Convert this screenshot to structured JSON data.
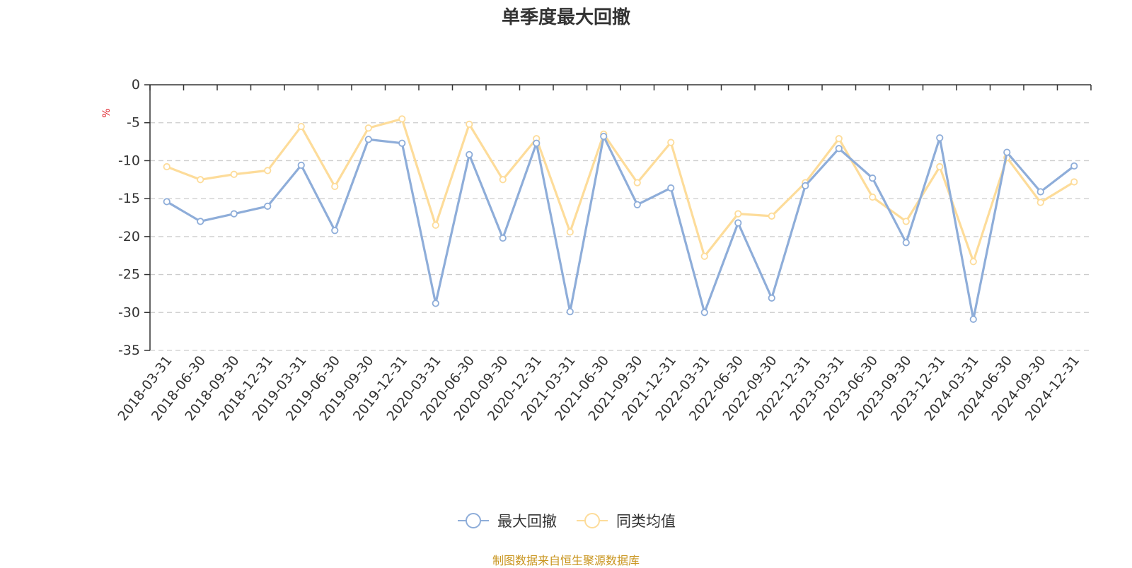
{
  "colors": {
    "series1": "#8eadd9",
    "series2": "#fddc9a",
    "unit": "#e0222a",
    "source": "#c9951e",
    "axis": "#333333",
    "grid": "#cccccc"
  },
  "source_note": "制图数据来自恒生聚源数据库",
  "legend": [
    {
      "name": "最大回撤",
      "color": "#8eadd9"
    },
    {
      "name": "同类均值",
      "color": "#fddc9a"
    }
  ],
  "chart_data": {
    "type": "line",
    "title": "单季度最大回撤",
    "ylabel": "%",
    "ylim": [
      -35,
      0
    ],
    "yticks": [
      0,
      -5,
      -10,
      -15,
      -20,
      -25,
      -30,
      -35
    ],
    "ytick_labels": [
      "0",
      "-5",
      "-10",
      "-15",
      "-20",
      "-25",
      "-30",
      "-35"
    ],
    "grid": true,
    "legend_position": "bottom-center",
    "categories": [
      "2018-03-31",
      "2018-06-30",
      "2018-09-30",
      "2018-12-31",
      "2019-03-31",
      "2019-06-30",
      "2019-09-30",
      "2019-12-31",
      "2020-03-31",
      "2020-06-30",
      "2020-09-30",
      "2020-12-31",
      "2021-03-31",
      "2021-06-30",
      "2021-09-30",
      "2021-12-31",
      "2022-03-31",
      "2022-06-30",
      "2022-09-30",
      "2022-12-31",
      "2023-03-31",
      "2023-06-30",
      "2023-09-30",
      "2023-12-31",
      "2024-03-31",
      "2024-06-30",
      "2024-09-30",
      "2024-12-31"
    ],
    "series": [
      {
        "name": "最大回撤",
        "values": [
          -15.4,
          -18.0,
          -17.0,
          -16.0,
          -10.6,
          -19.2,
          -7.2,
          -7.7,
          -28.8,
          -9.2,
          -20.2,
          -7.7,
          -29.9,
          -6.8,
          -15.8,
          -13.6,
          -30.0,
          -18.2,
          -28.1,
          -13.3,
          -8.4,
          -12.3,
          -20.8,
          -7.0,
          -30.9,
          -8.9,
          -14.1,
          -10.7
        ]
      },
      {
        "name": "同类均值",
        "values": [
          -10.8,
          -12.5,
          -11.8,
          -11.3,
          -5.5,
          -13.4,
          -5.7,
          -4.5,
          -18.5,
          -5.2,
          -12.5,
          -7.1,
          -19.4,
          -6.5,
          -12.9,
          -7.6,
          -22.6,
          -17.0,
          -17.3,
          -12.9,
          -7.1,
          -14.8,
          -18.0,
          -10.8,
          -23.3,
          -9.6,
          -15.5,
          -12.8
        ]
      }
    ]
  }
}
